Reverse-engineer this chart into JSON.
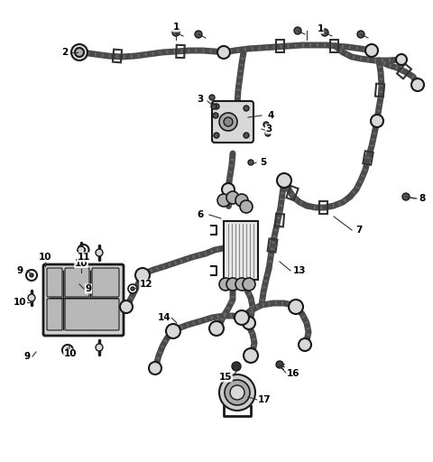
{
  "bg_color": "#ffffff",
  "line_color": "#1a1a1a",
  "fill_light": "#d8d8d8",
  "fill_mid": "#b0b0b0",
  "fill_dark": "#555555",
  "fig_width": 4.8,
  "fig_height": 5.12,
  "dpi": 100
}
